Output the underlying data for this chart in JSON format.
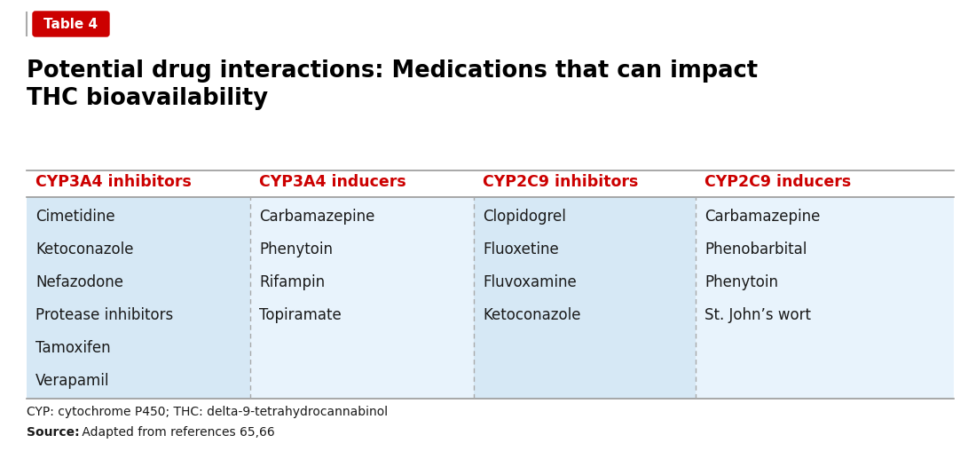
{
  "table_label": "Table 4",
  "title_line1": "Potential drug interactions: Medications that can impact",
  "title_line2": "THC bioavailability",
  "columns": [
    "CYP3A4 inhibitors",
    "CYP3A4 inducers",
    "CYP2C9 inhibitors",
    "CYP2C9 inducers"
  ],
  "col_data": [
    [
      "Cimetidine",
      "Ketoconazole",
      "Nefazodone",
      "Protease inhibitors",
      "Tamoxifen",
      "Verapamil"
    ],
    [
      "Carbamazepine",
      "Phenytoin",
      "Rifampin",
      "Topiramate"
    ],
    [
      "Clopidogrel",
      "Fluoxetine",
      "Fluvoxamine",
      "Ketoconazole"
    ],
    [
      "Carbamazepine",
      "Phenobarbital",
      "Phenytoin",
      "St. John’s wort"
    ]
  ],
  "footnote1": "CYP: cytochrome P450; THC: delta-9-tetrahydrocannabinol",
  "footnote2_bold": "Source:",
  "footnote2_normal": " Adapted from references 65,66",
  "bg_col0": "#d6e8f5",
  "bg_col1": "#e8f3fc",
  "bg_col2": "#d6e8f5",
  "bg_col3": "#e8f3fc",
  "header_color": "#cc0000",
  "title_color": "#000000",
  "table_label_bg": "#cc0000",
  "table_label_text": "#ffffff",
  "border_color": "#999999",
  "dashed_border_color": "#aaaaaa",
  "text_color": "#1a1a1a",
  "figsize": [
    11.0,
    5.17
  ],
  "dpi": 100
}
